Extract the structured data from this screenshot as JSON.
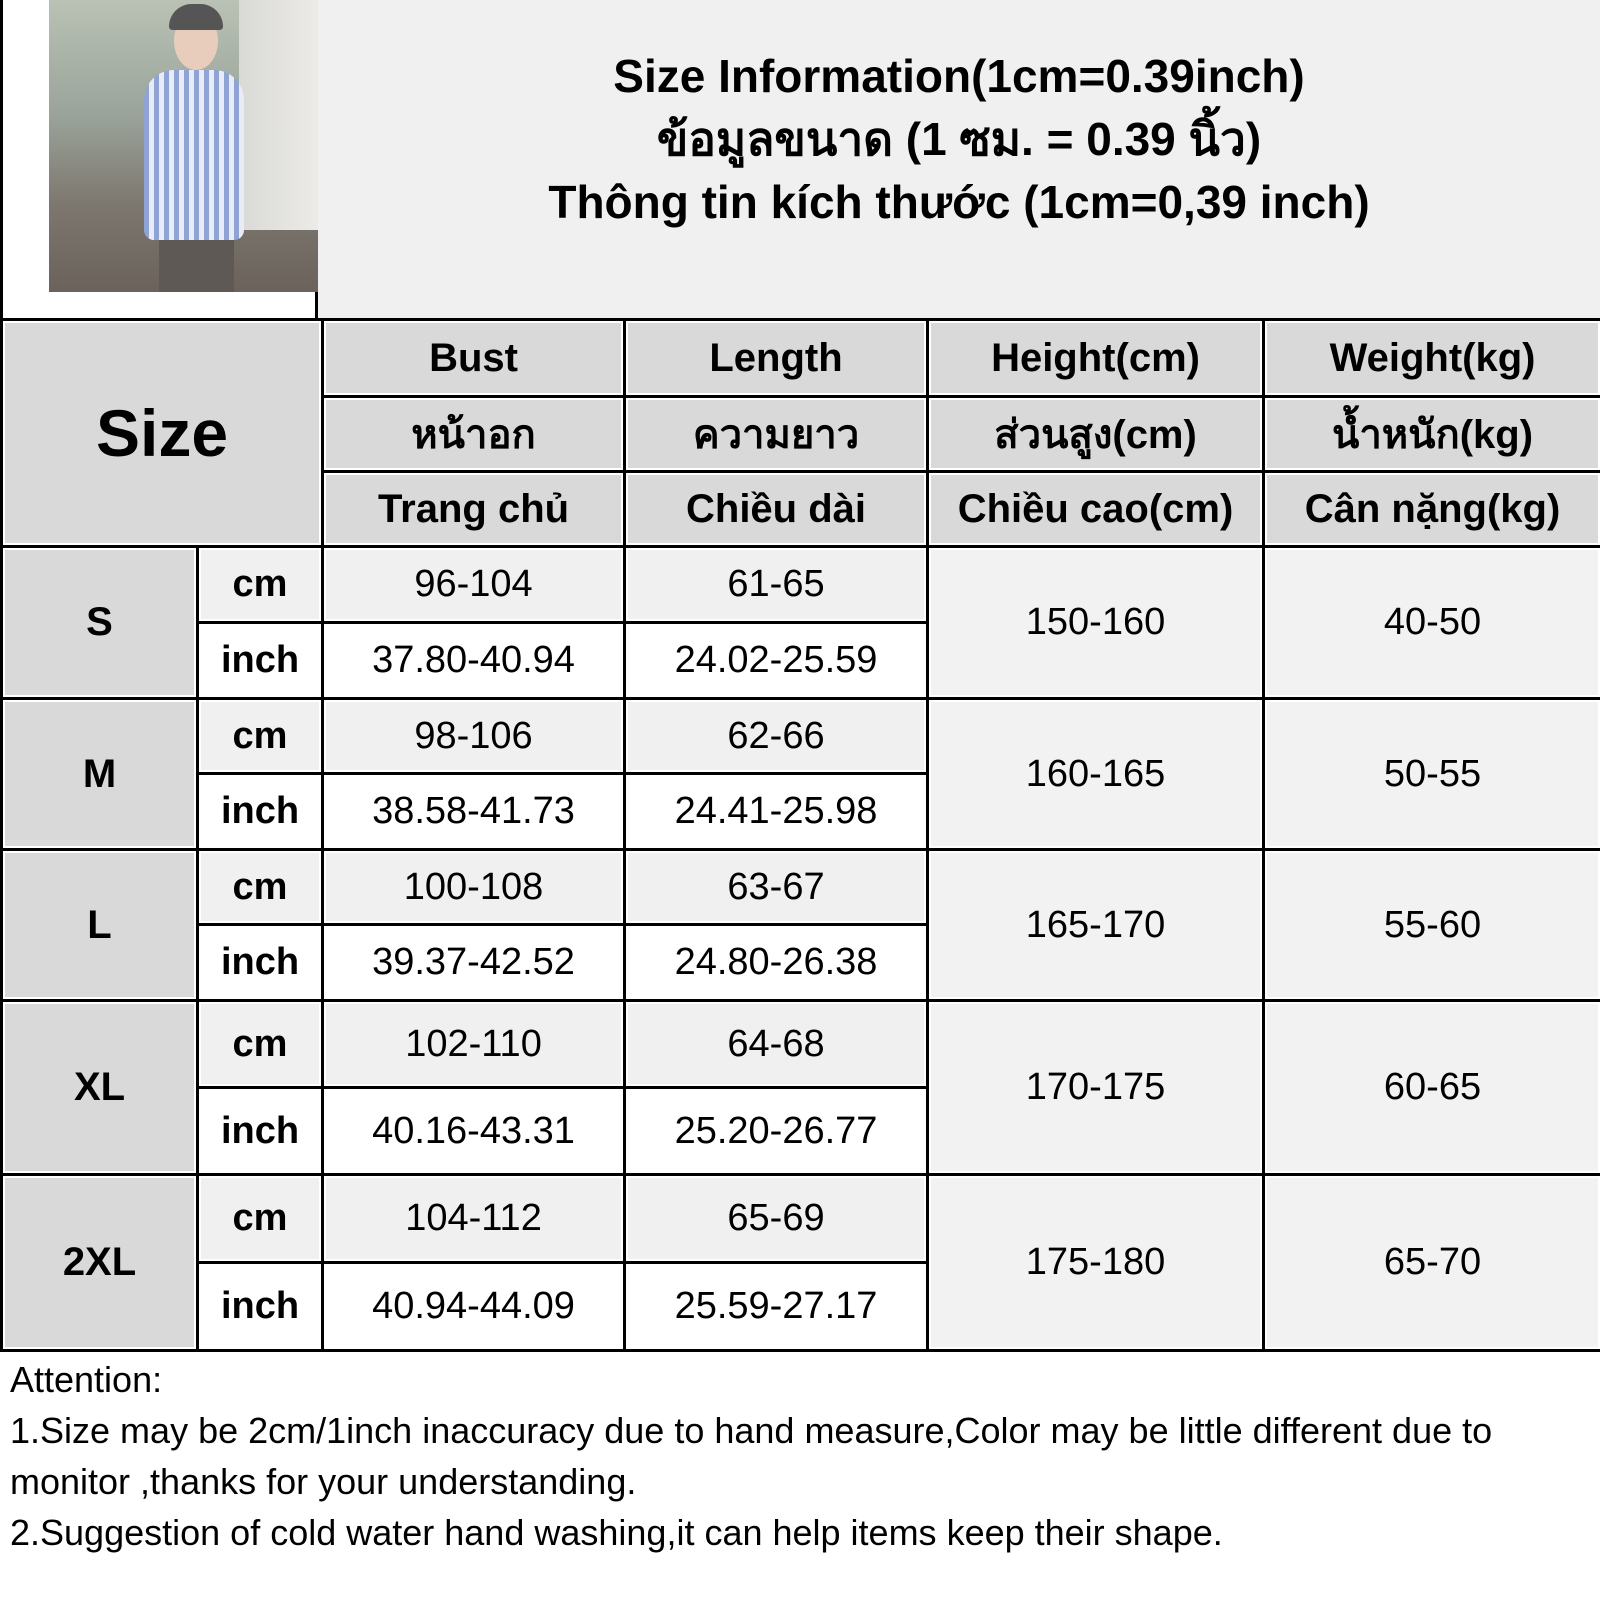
{
  "title": {
    "line1": "Size Information(1cm=0.39inch)",
    "line2": "ข้อมูลขนาด (1 ซม. = 0.39 นิ้ว)",
    "line3": "Thông tin kích thước (1cm=0,39 inch)"
  },
  "header": {
    "size": "Size",
    "columns": [
      {
        "en": "Bust",
        "th": "หน้าอก",
        "vi": "Trang chủ"
      },
      {
        "en": "Length",
        "th": "ความยาว",
        "vi": "Chiều dài"
      },
      {
        "en": "Height(cm)",
        "th": "ส่วนสูง(cm)",
        "vi": "Chiều cao(cm)"
      },
      {
        "en": "Weight(kg)",
        "th": "น้ำหนัก(kg)",
        "vi": "Cân nặng(kg)"
      }
    ]
  },
  "units": {
    "cm": "cm",
    "inch": "inch"
  },
  "rows": [
    {
      "size": "S",
      "bust_cm": "96-104",
      "bust_inch": "37.80-40.94",
      "length_cm": "61-65",
      "length_inch": "24.02-25.59",
      "height": "150-160",
      "weight": "40-50"
    },
    {
      "size": "M",
      "bust_cm": "98-106",
      "bust_inch": "38.58-41.73",
      "length_cm": "62-66",
      "length_inch": "24.41-25.98",
      "height": "160-165",
      "weight": "50-55"
    },
    {
      "size": "L",
      "bust_cm": "100-108",
      "bust_inch": "39.37-42.52",
      "length_cm": "63-67",
      "length_inch": "24.80-26.38",
      "height": "165-170",
      "weight": "55-60"
    },
    {
      "size": "XL",
      "bust_cm": "102-110",
      "bust_inch": "40.16-43.31",
      "length_cm": "64-68",
      "length_inch": "25.20-26.77",
      "height": "170-175",
      "weight": "60-65"
    },
    {
      "size": "2XL",
      "bust_cm": "104-112",
      "bust_inch": "40.94-44.09",
      "length_cm": "65-69",
      "length_inch": "25.59-27.17",
      "height": "175-180",
      "weight": "65-70"
    }
  ],
  "attention": {
    "heading": "Attention:",
    "note1": "1.Size may be 2cm/1inch inaccuracy due to hand measure,Color may be little different due to monitor ,thanks for your understanding.",
    "note2": "2.Suggestion of cold water hand washing,it can help items keep their shape."
  }
}
